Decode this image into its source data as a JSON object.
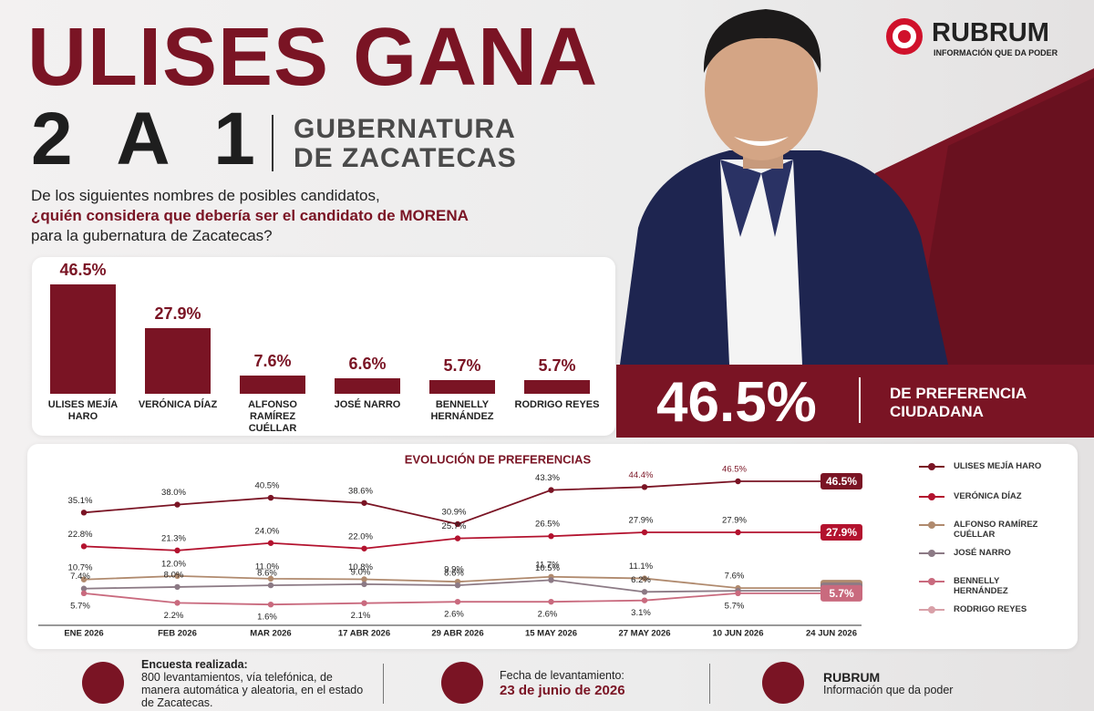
{
  "brand": {
    "name": "RUBRUM",
    "tagline": "INFORMACIÓN QUE DA PODER"
  },
  "header": {
    "title": "ULISES GANA",
    "score": "2 A 1",
    "subtitle": [
      "GUBERNATURA",
      "DE ZACATECAS"
    ]
  },
  "question": {
    "intro": "De los siguientes nombres de posibles candidatos,",
    "emphasis": "¿quién considera que debería ser el candidato de MORENA",
    "outro": "para la gubernatura de Zacatecas?"
  },
  "chart_data": [
    {
      "type": "bar",
      "categories": [
        "ULISES MEJÍA HARO",
        "VERÓNICA DÍAZ",
        "ALFONSO RAMÍREZ CUÉLLAR",
        "JOSÉ NARRO",
        "BENNELLY HERNÁNDEZ",
        "RODRIGO REYES"
      ],
      "values": [
        46.5,
        27.9,
        7.6,
        6.6,
        5.7,
        5.7
      ],
      "value_labels": [
        "46.5%",
        "27.9%",
        "7.6%",
        "6.6%",
        "5.7%",
        "5.7%"
      ],
      "color": "#7a1424"
    },
    {
      "type": "line",
      "title": "EVOLUCIÓN DE PREFERENCIAS",
      "categories": [
        "ENE 2026",
        "FEB 2026",
        "MAR 2026",
        "17 ABR 2026",
        "29 ABR 2026",
        "15 MAY 2026",
        "27 MAY 2026",
        "10 JUN 2026",
        "24 JUN 2026"
      ],
      "series": [
        {
          "name": "ULISES MEJÍA HARO",
          "color": "#7a1424",
          "values": [
            35.1,
            38.0,
            40.5,
            38.6,
            30.9,
            43.3,
            44.4,
            46.5,
            46.5
          ],
          "value_labels": [
            "35.1%",
            "38.0%",
            "40.5%",
            "38.6%",
            "30.9%",
            "43.3%",
            "44.4%",
            "46.5%",
            "46.5%"
          ]
        },
        {
          "name": "VERÓNICA DÍAZ",
          "color": "#b3122e",
          "values": [
            22.8,
            21.3,
            24.0,
            22.0,
            25.7,
            26.5,
            27.9,
            27.9,
            27.9
          ],
          "value_labels": [
            "22.8%",
            "21.3%",
            "24.0%",
            "22.0%",
            "25.7%",
            "26.5%",
            "27.9%",
            "27.9%",
            "27.9%"
          ]
        },
        {
          "name": "ALFONSO RAMÍREZ CUÉLLAR",
          "color": "#b08a6e",
          "values": [
            10.7,
            12.0,
            11.0,
            10.8,
            9.9,
            11.7,
            11.1,
            7.6,
            7.6
          ],
          "value_labels": [
            "10.7%",
            "12.0%",
            "11.0%",
            "10.8%",
            "9.9%",
            "11.7%",
            "11.1%",
            "7.6%",
            "7.6%"
          ]
        },
        {
          "name": "JOSÉ NARRO",
          "color": "#8c7a85",
          "values": [
            7.4,
            8.0,
            8.6,
            9.0,
            8.6,
            10.5,
            6.2,
            6.6,
            6.6
          ],
          "value_labels": [
            "7.4%",
            "8.0%",
            "8.6%",
            "9.0%",
            "8.6%",
            "10.5%",
            "6.2%",
            null,
            "6.6%"
          ]
        },
        {
          "name": "BENNELLY HERNÁNDEZ",
          "color": "#c96a7e",
          "values": [
            5.7,
            2.2,
            1.6,
            2.1,
            2.6,
            2.6,
            3.1,
            5.7,
            5.7
          ],
          "value_labels": [
            "5.7%",
            "2.2%",
            "1.6%",
            "2.1%",
            "2.6%",
            "2.6%",
            "3.1%",
            "5.7%",
            "5.7%"
          ]
        },
        {
          "name": "RODRIGO REYES",
          "color": "#d8a0a8",
          "values": [
            null,
            null,
            null,
            null,
            null,
            null,
            null,
            null,
            null
          ]
        }
      ]
    }
  ],
  "highlight": {
    "value": "46.5%",
    "label": "DE PREFERENCIA CIUDADANA"
  },
  "footer": {
    "survey": {
      "title": "Encuesta realizada:",
      "text": "800 levantamientos, vía telefónica, de manera automática y aleatoria, en el estado de Zacatecas."
    },
    "date": {
      "title": "Fecha de levantamiento:",
      "value": "23 de junio de 2026"
    },
    "brand": {
      "name": "RUBRUM",
      "tagline": "Información que da poder"
    }
  }
}
